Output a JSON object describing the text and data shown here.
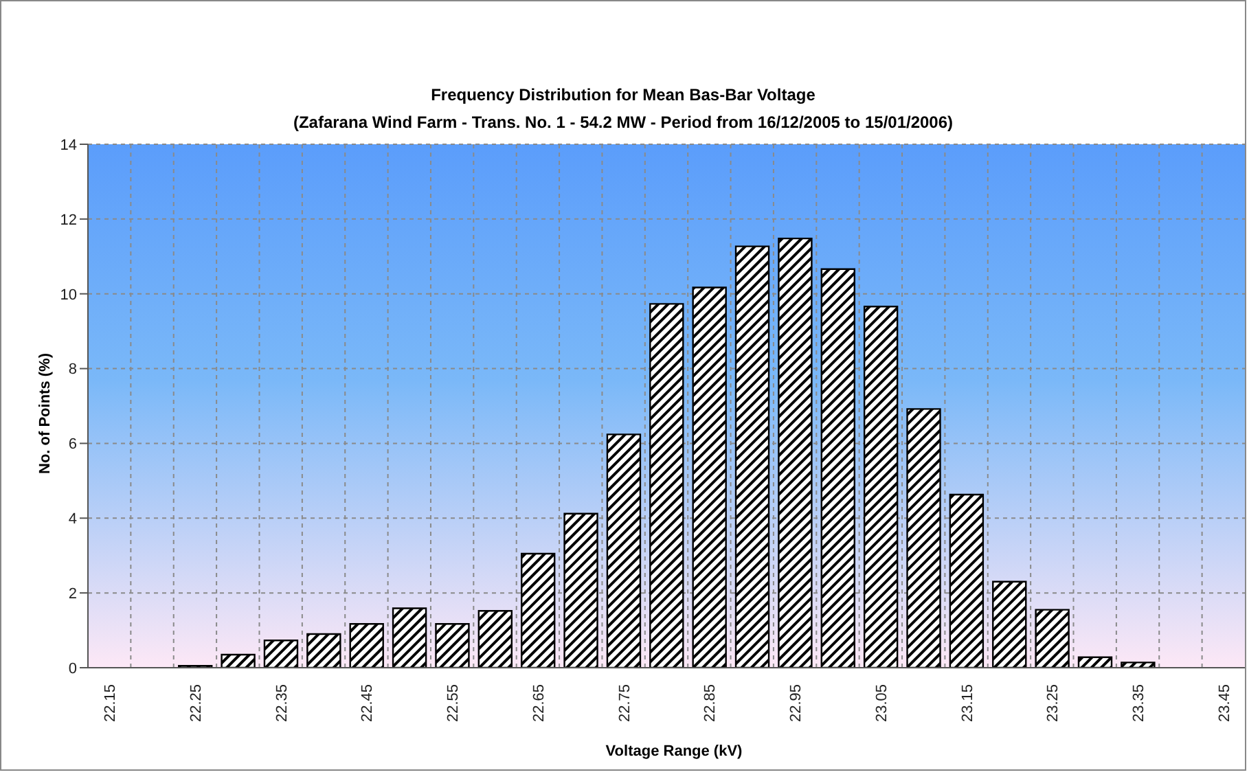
{
  "chart_data": {
    "type": "bar",
    "title": "Frequency Distribution for Mean Bas-Bar Voltage",
    "subtitle": "(Zafarana Wind Farm - Trans. No. 1 - 54.2 MW - Period from 16/12/2005 to 15/01/2006)",
    "xlabel": "Voltage Range (kV)",
    "ylabel": "No. of Points (%)",
    "categories": [
      "22.15",
      null,
      "22.25",
      null,
      "22.35",
      null,
      "22.45",
      null,
      "22.55",
      null,
      "22.65",
      null,
      "22.75",
      null,
      "22.85",
      null,
      "22.95",
      null,
      "23.05",
      null,
      "23.15",
      null,
      "23.25",
      null,
      "23.35",
      null,
      "23.45"
    ],
    "values": [
      0,
      0,
      0.05,
      0.35,
      0.73,
      0.9,
      1.17,
      1.59,
      1.17,
      1.52,
      3.05,
      4.12,
      6.24,
      9.73,
      10.17,
      11.27,
      11.48,
      10.66,
      9.66,
      6.92,
      4.63,
      2.3,
      1.55,
      0.28,
      0.14,
      0,
      0
    ],
    "color": "#000000",
    "ylim": [
      0,
      14
    ],
    "yticks": [
      0,
      2,
      4,
      6,
      8,
      10,
      12,
      14
    ],
    "grid": true
  }
}
